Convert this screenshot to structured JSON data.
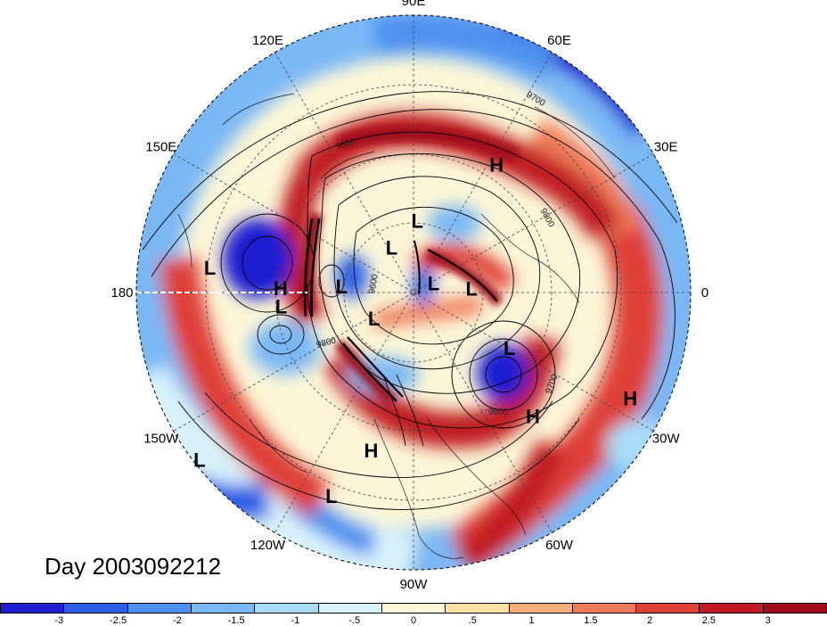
{
  "title_day": "Day 2003092212",
  "longitude_labels": [
    {
      "text": "90E",
      "deg": 90
    },
    {
      "text": "60E",
      "deg": 60
    },
    {
      "text": "30E",
      "deg": 30
    },
    {
      "text": "0",
      "deg": 0
    },
    {
      "text": "30W",
      "deg": -30
    },
    {
      "text": "60W",
      "deg": -60
    },
    {
      "text": "90W",
      "deg": -90
    },
    {
      "text": "120W",
      "deg": -120
    },
    {
      "text": "150W",
      "deg": -150
    },
    {
      "text": "180",
      "deg": 180
    },
    {
      "text": "150E",
      "deg": 150
    },
    {
      "text": "120E",
      "deg": 120
    }
  ],
  "contour_labels": [
    "9700",
    "9600",
    "9800",
    "9600",
    "9800",
    "9700",
    "9600"
  ],
  "pressure_centers": [
    {
      "type": "H",
      "lon": 57,
      "r": 0.55
    },
    {
      "type": "H",
      "lon": 178,
      "r": 0.48
    },
    {
      "type": "L",
      "lon": 173,
      "r": 0.74
    },
    {
      "type": "L",
      "lon": -174,
      "r": 0.48
    },
    {
      "type": "L",
      "lon": 175,
      "r": 0.26
    },
    {
      "type": "L",
      "lon": 116,
      "r": 0.18
    },
    {
      "type": "L",
      "lon": 87,
      "r": 0.26
    },
    {
      "type": "L",
      "lon": 25,
      "r": 0.08
    },
    {
      "type": "L",
      "lon": 4,
      "r": 0.21
    },
    {
      "type": "L",
      "lon": -147,
      "r": 0.17
    },
    {
      "type": "L",
      "lon": -30,
      "r": 0.4
    },
    {
      "type": "H",
      "lon": -46,
      "r": 0.62
    },
    {
      "type": "H",
      "lon": -26,
      "r": 0.87
    },
    {
      "type": "H",
      "lon": -105,
      "r": 0.59
    },
    {
      "type": "L",
      "lon": -142,
      "r": 0.98
    },
    {
      "type": "L",
      "lon": -112,
      "r": 0.79
    }
  ],
  "colorbar": {
    "colors": [
      "#1f1fd1",
      "#2a5fe6",
      "#4d90ef",
      "#7ab8f5",
      "#a8dcf7",
      "#d8f2fb",
      "#fbf6d7",
      "#fde0a4",
      "#f7ae78",
      "#ef7b5a",
      "#de4137",
      "#c11a24",
      "#a00c1b"
    ],
    "ticks": [
      "-3",
      "-2.5",
      "-2",
      "-1.5",
      "-1",
      "-.5",
      "0",
      ".5",
      "1",
      "1.5",
      "2",
      "2.5",
      "3"
    ]
  },
  "icon_names": {
    "map": "polar-stereographic-map"
  }
}
